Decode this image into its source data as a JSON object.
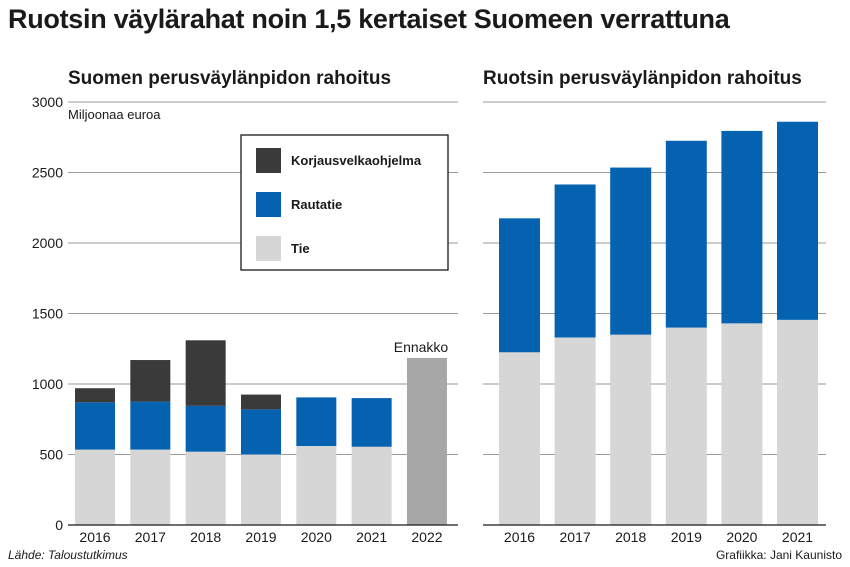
{
  "title": "Ruotsin väylärahat noin 1,5 kertaiset Suomeen verrattuna",
  "source": "Lähde: Taloustutkimus",
  "credit": "Grafiikka: Jani Kaunisto",
  "colors": {
    "tie": "#d6d6d6",
    "rautatie": "#0562b0",
    "korjausvelkaohjelma": "#3a3a3a",
    "ennakko": "#a7a7a7",
    "grid": "#9a9a9a"
  },
  "chart_data": [
    {
      "type": "bar",
      "stacked": true,
      "title": "Suomen perusväylänpidon rahoitus",
      "ylabel": "Miljoonaa euroa",
      "ylim": [
        0,
        3000
      ],
      "yticks": [
        0,
        500,
        1000,
        1500,
        2000,
        2500,
        3000
      ],
      "categories": [
        "2016",
        "2017",
        "2018",
        "2019",
        "2020",
        "2021",
        "2022"
      ],
      "series": [
        {
          "name": "Tie",
          "color_key": "tie",
          "values": [
            535,
            535,
            520,
            500,
            560,
            555,
            null
          ]
        },
        {
          "name": "Rautatie",
          "color_key": "rautatie",
          "values": [
            335,
            340,
            325,
            320,
            345,
            345,
            null
          ]
        },
        {
          "name": "Korjausvelkaohjelma",
          "color_key": "korjausvelkaohjelma",
          "values": [
            100,
            295,
            465,
            105,
            0,
            0,
            null
          ]
        }
      ],
      "forecast": {
        "category": "2022",
        "value": 1185,
        "label": "Ennakko"
      },
      "legend": {
        "position": "top-right",
        "items": [
          {
            "label": "Korjausvelkaohjelma",
            "color_key": "korjausvelkaohjelma"
          },
          {
            "label": "Rautatie",
            "color_key": "rautatie"
          },
          {
            "label": "Tie",
            "color_key": "tie"
          }
        ]
      }
    },
    {
      "type": "bar",
      "stacked": true,
      "title": "Ruotsin perusväylänpidon rahoitus",
      "ylim": [
        0,
        3000
      ],
      "categories": [
        "2016",
        "2017",
        "2018",
        "2019",
        "2020",
        "2021"
      ],
      "series": [
        {
          "name": "Tie",
          "color_key": "tie",
          "values": [
            1225,
            1330,
            1350,
            1400,
            1430,
            1455
          ]
        },
        {
          "name": "Rautatie",
          "color_key": "rautatie",
          "values": [
            950,
            1085,
            1185,
            1325,
            1365,
            1405
          ]
        }
      ]
    }
  ]
}
